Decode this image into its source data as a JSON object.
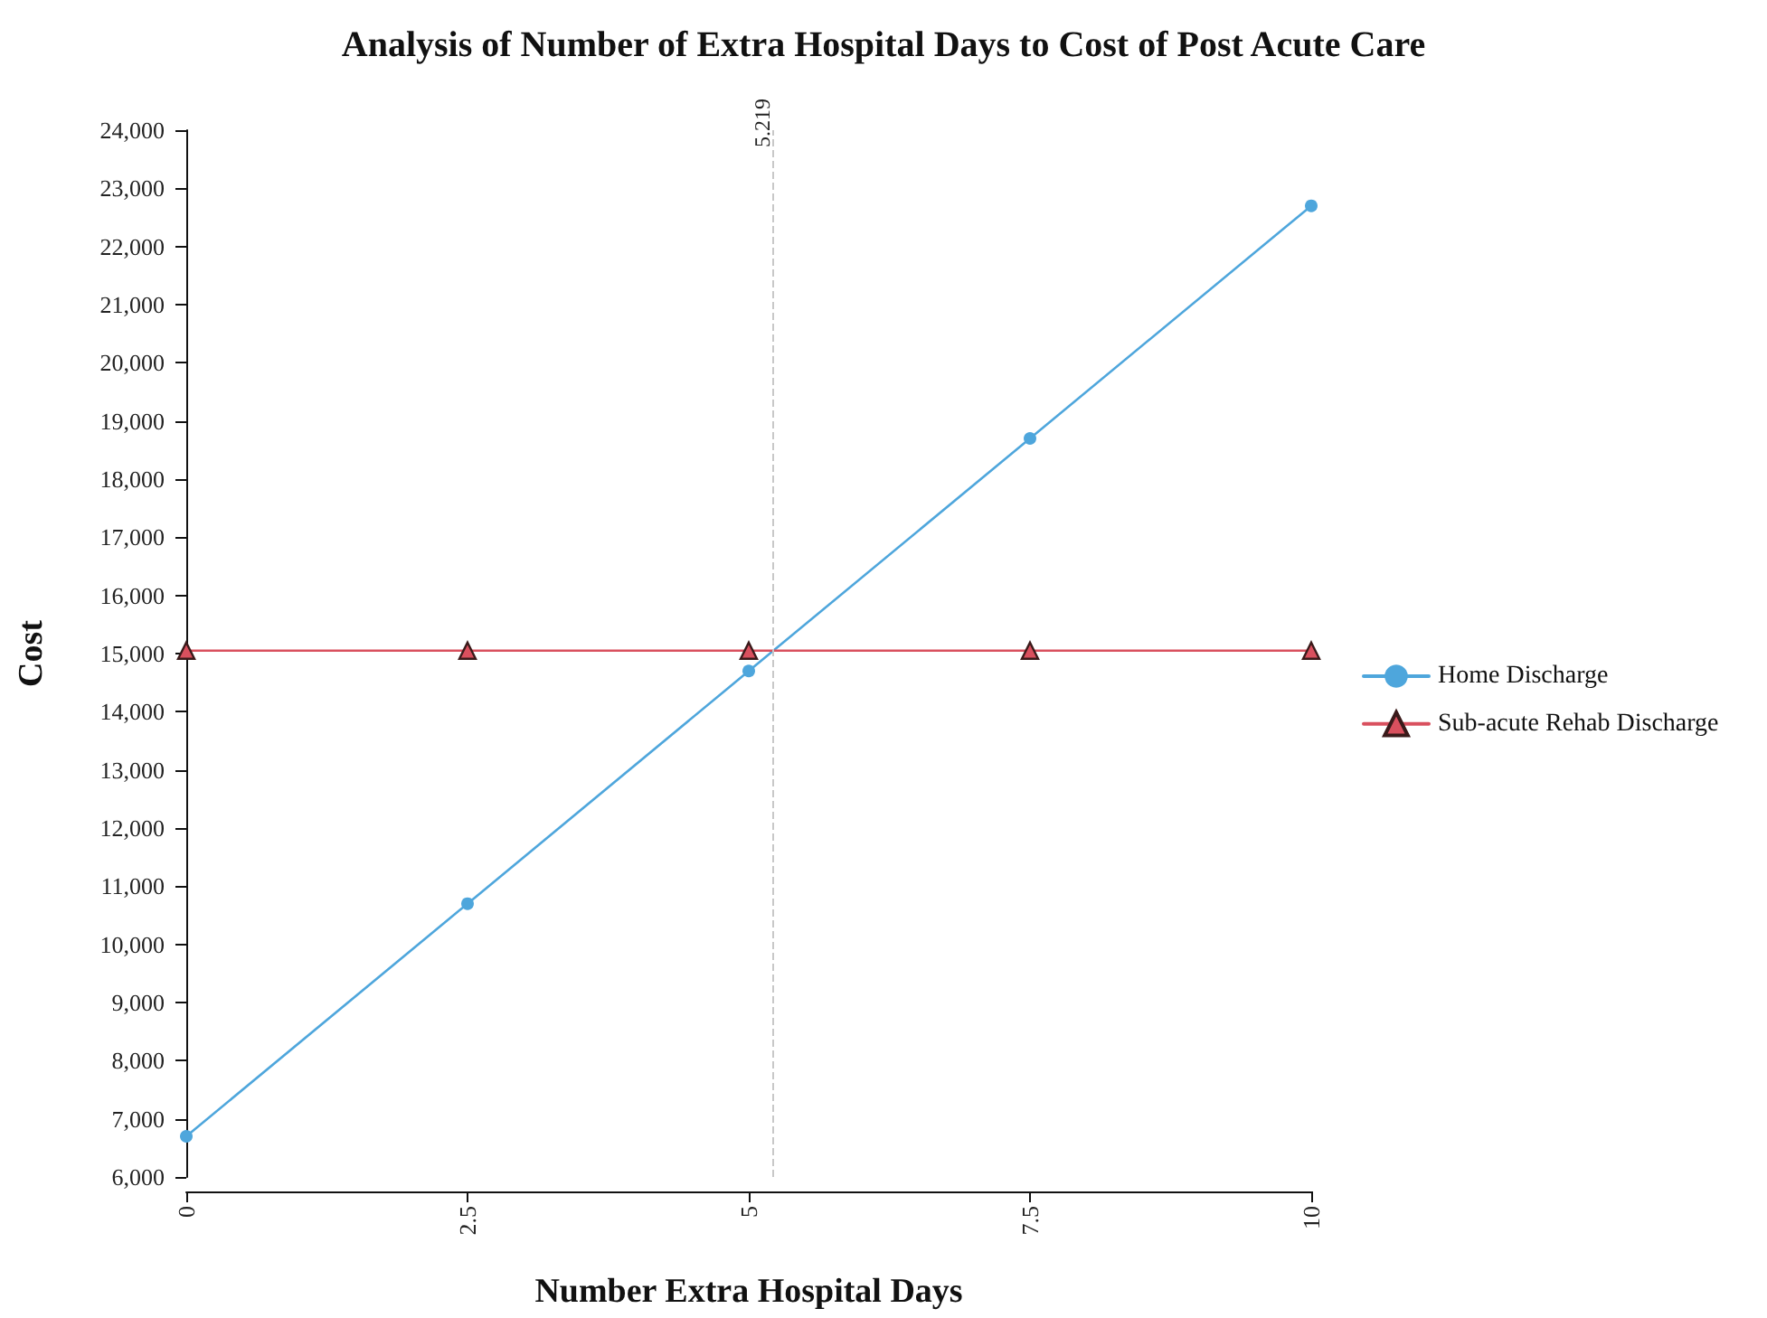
{
  "chart_data": {
    "type": "line",
    "title": "Analysis of Number of Extra Hospital Days to Cost of Post Acute Care",
    "xlabel": "Number Extra Hospital Days",
    "ylabel": "Cost",
    "x": [
      0,
      2.5,
      5,
      7.5,
      10
    ],
    "series": [
      {
        "name": "Home Discharge",
        "color": "#4ea6dc",
        "marker": "circle",
        "values": [
          6700,
          10700,
          14700,
          18700,
          22700
        ]
      },
      {
        "name": "Sub-acute Rehab Discharge",
        "color": "#d9505e",
        "marker": "triangle",
        "values": [
          15050,
          15050,
          15050,
          15050,
          15050
        ]
      }
    ],
    "xlim": [
      0,
      10
    ],
    "xticks": [
      0,
      2.5,
      5,
      7.5,
      10
    ],
    "ylim": [
      6000,
      24000
    ],
    "yticks": [
      {
        "value": 6000,
        "label": "6,000"
      },
      {
        "value": 7000,
        "label": "7,000"
      },
      {
        "value": 8000,
        "label": "8,000"
      },
      {
        "value": 9000,
        "label": "9,000"
      },
      {
        "value": 10000,
        "label": "10,000"
      },
      {
        "value": 11000,
        "label": "11,000"
      },
      {
        "value": 12000,
        "label": "12,000"
      },
      {
        "value": 13000,
        "label": "13,000"
      },
      {
        "value": 14000,
        "label": "14,000"
      },
      {
        "value": 15000,
        "label": "15,000"
      },
      {
        "value": 16000,
        "label": "16,000"
      },
      {
        "value": 17000,
        "label": "17,000"
      },
      {
        "value": 18000,
        "label": "18,000"
      },
      {
        "value": 19000,
        "label": "19,000"
      },
      {
        "value": 20000,
        "label": "20,000"
      },
      {
        "value": 21000,
        "label": "21,000"
      },
      {
        "value": 22000,
        "label": "22,000"
      },
      {
        "value": 23000,
        "label": "23,000"
      },
      {
        "value": 24000,
        "label": "24,000"
      }
    ],
    "ref_lines": [
      {
        "axis": "x",
        "value": 5.219,
        "label": "5.219",
        "color": "#c8c8c8",
        "line_style": "dashed"
      }
    ],
    "grid": false,
    "legend": "right",
    "line_style": "solid"
  }
}
